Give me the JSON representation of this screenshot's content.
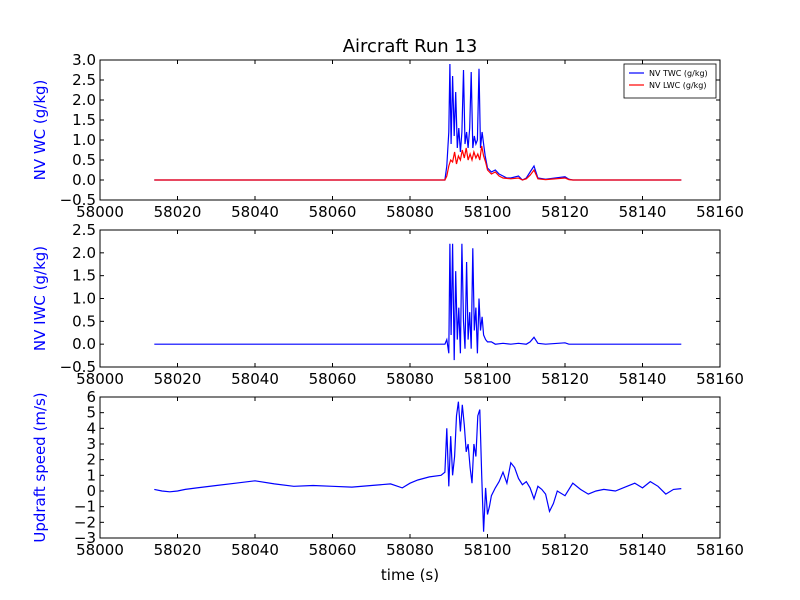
{
  "title": "Aircraft Run 13",
  "xlabel": "time (s)",
  "ylabel_color": "#0000ff",
  "chart_data": [
    {
      "type": "line",
      "ylabel": "NV WC (g/kg)",
      "xlim": [
        58000,
        58160
      ],
      "ylim": [
        -0.5,
        3.0
      ],
      "xticks": [
        "58000",
        "58020",
        "58040",
        "58060",
        "58080",
        "58100",
        "58120",
        "58140",
        "58160"
      ],
      "yticks": [
        "−0.5",
        "0.0",
        "0.5",
        "1.0",
        "1.5",
        "2.0",
        "2.5",
        "3.0"
      ],
      "legend": "top-right",
      "series": [
        {
          "name": "NV TWC (g/kg)",
          "color": "#0000ff",
          "x": [
            58014,
            58089,
            58089.5,
            58090,
            58090.3,
            58090.6,
            58091,
            58091.4,
            58091.8,
            58092.2,
            58092.6,
            58093,
            58093.4,
            58093.8,
            58094.2,
            58094.6,
            58095,
            58095.4,
            58095.8,
            58096.2,
            58096.6,
            58097,
            58097.4,
            58097.8,
            58098.2,
            58098.6,
            58099,
            58099.4,
            58100,
            58101,
            58102,
            58103,
            58104,
            58105,
            58106,
            58108,
            58109,
            58110,
            58111,
            58112,
            58113,
            58115,
            58120,
            58121,
            58122,
            58130,
            58150
          ],
          "y": [
            0.0,
            0.0,
            0.35,
            1.2,
            2.9,
            0.9,
            2.6,
            1.1,
            2.2,
            0.8,
            1.3,
            0.7,
            1.2,
            2.75,
            0.9,
            1.2,
            0.8,
            1.3,
            2.7,
            0.8,
            1.1,
            0.9,
            1.0,
            2.78,
            0.8,
            1.2,
            0.9,
            0.6,
            0.3,
            0.2,
            0.25,
            0.15,
            0.1,
            0.05,
            0.05,
            0.1,
            0.0,
            0.05,
            0.2,
            0.35,
            0.05,
            0.02,
            0.08,
            0.02,
            0.0,
            0.0,
            0.0
          ]
        },
        {
          "name": "NV LWC (g/kg)",
          "color": "#ff0000",
          "x": [
            58014,
            58089,
            58089.5,
            58090,
            58090.5,
            58091,
            58091.5,
            58092,
            58092.5,
            58093,
            58093.5,
            58094,
            58094.5,
            58095,
            58095.5,
            58096,
            58096.5,
            58097,
            58097.5,
            58098,
            58098.5,
            58099,
            58099.5,
            58100,
            58101,
            58102,
            58103,
            58104,
            58106,
            58108,
            58109,
            58110,
            58111,
            58112,
            58113,
            58115,
            58120,
            58121,
            58122,
            58130,
            58150
          ],
          "y": [
            0.0,
            0.0,
            0.1,
            0.35,
            0.5,
            0.45,
            0.7,
            0.4,
            0.6,
            0.5,
            0.75,
            0.55,
            0.8,
            0.5,
            0.65,
            0.5,
            0.7,
            0.55,
            0.65,
            0.5,
            0.85,
            0.6,
            0.45,
            0.25,
            0.15,
            0.2,
            0.1,
            0.05,
            0.03,
            0.05,
            0.0,
            0.03,
            0.12,
            0.25,
            0.03,
            0.01,
            0.05,
            0.01,
            0.0,
            0.0,
            0.0
          ]
        }
      ]
    },
    {
      "type": "line",
      "ylabel": "NV IWC (g/kg)",
      "xlim": [
        58000,
        58160
      ],
      "ylim": [
        -0.5,
        2.5
      ],
      "xticks": [
        "58000",
        "58020",
        "58040",
        "58060",
        "58080",
        "58100",
        "58120",
        "58140",
        "58160"
      ],
      "yticks": [
        "−0.5",
        "0.0",
        "0.5",
        "1.0",
        "1.5",
        "2.0",
        "2.5"
      ],
      "series": [
        {
          "color": "#0000ff",
          "x": [
            58014,
            58089,
            58089.5,
            58090,
            58090.3,
            58090.6,
            58091,
            58091.4,
            58091.8,
            58092.2,
            58092.6,
            58093,
            58093.4,
            58093.8,
            58094.2,
            58094.6,
            58095,
            58095.4,
            58095.8,
            58096.2,
            58096.6,
            58097,
            58097.4,
            58097.8,
            58098.2,
            58098.6,
            58099,
            58099.5,
            58100,
            58101,
            58102,
            58104,
            58106,
            58108,
            58110,
            58111,
            58112,
            58113,
            58115,
            58120,
            58121,
            58122,
            58130,
            58150
          ],
          "y": [
            0.0,
            0.0,
            0.1,
            -0.2,
            2.2,
            0.2,
            2.2,
            -0.35,
            1.6,
            0.1,
            0.8,
            -0.2,
            2.2,
            0.5,
            -0.1,
            1.8,
            0.1,
            0.7,
            -0.1,
            2.1,
            0.3,
            0.8,
            -0.2,
            1.0,
            0.3,
            0.6,
            0.2,
            0.1,
            0.05,
            0.05,
            0.0,
            0.02,
            0.0,
            0.02,
            0.0,
            0.05,
            0.15,
            0.02,
            0.0,
            0.03,
            0.0,
            0.0,
            0.0,
            0.0
          ]
        }
      ]
    },
    {
      "type": "line",
      "ylabel": "Updraft speed (m/s)",
      "xlim": [
        58000,
        58160
      ],
      "ylim": [
        -3,
        6
      ],
      "xticks": [
        "58000",
        "58020",
        "58040",
        "58060",
        "58080",
        "58100",
        "58120",
        "58140",
        "58160"
      ],
      "yticks": [
        "−3",
        "−2",
        "−1",
        "0",
        "1",
        "2",
        "3",
        "4",
        "5",
        "6"
      ],
      "series": [
        {
          "color": "#0000ff",
          "x": [
            58014,
            58016,
            58018,
            58020,
            58022,
            58025,
            58030,
            58035,
            58040,
            58045,
            58050,
            58055,
            58060,
            58065,
            58070,
            58075,
            58078,
            58080,
            58082,
            58085,
            58088,
            58089,
            58089.5,
            58090,
            58090.5,
            58091,
            58091.5,
            58092,
            58092.5,
            58093,
            58093.5,
            58094,
            58094.5,
            58095,
            58095.5,
            58096,
            58096.5,
            58097,
            58097.5,
            58098,
            58098.5,
            58099,
            58099.5,
            58100,
            58100.5,
            58101,
            58102,
            58103,
            58104,
            58105,
            58106,
            58107,
            58108,
            58109,
            58110,
            58111,
            58112,
            58113,
            58114,
            58115,
            58116,
            58117,
            58118,
            58120,
            58122,
            58124,
            58126,
            58128,
            58130,
            58133,
            58136,
            58138,
            58140,
            58142,
            58144,
            58146,
            58148,
            58150
          ],
          "y": [
            0.1,
            0.0,
            -0.05,
            0.0,
            0.1,
            0.2,
            0.35,
            0.5,
            0.65,
            0.45,
            0.3,
            0.35,
            0.3,
            0.25,
            0.35,
            0.45,
            0.2,
            0.5,
            0.7,
            0.9,
            1.0,
            1.2,
            4.0,
            0.3,
            3.5,
            1.0,
            2.2,
            4.8,
            5.7,
            3.8,
            5.5,
            4.2,
            2.5,
            3.0,
            1.5,
            0.5,
            3.0,
            2.2,
            4.8,
            5.2,
            1.0,
            -2.6,
            0.2,
            -1.5,
            -1.0,
            -0.3,
            0.2,
            0.6,
            1.2,
            0.5,
            1.8,
            1.5,
            0.8,
            0.4,
            0.6,
            0.2,
            -0.5,
            0.3,
            0.1,
            -0.2,
            -1.3,
            -0.8,
            0.0,
            -0.3,
            0.5,
            0.1,
            -0.2,
            0.0,
            0.1,
            0.0,
            0.3,
            0.5,
            0.2,
            0.6,
            0.3,
            -0.2,
            0.1,
            0.15
          ]
        }
      ]
    }
  ]
}
